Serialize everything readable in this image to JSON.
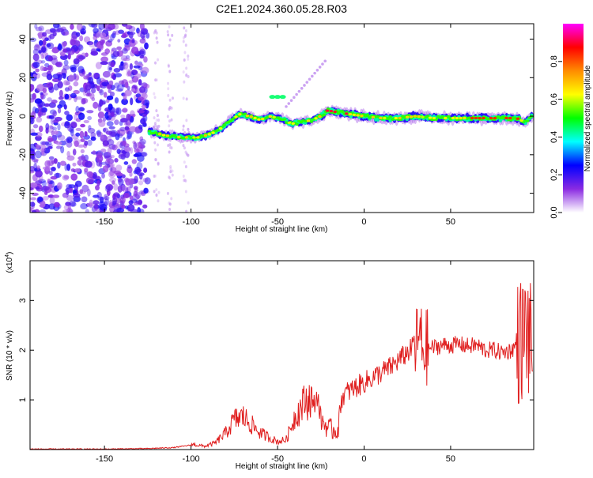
{
  "title": "C2E1.2024.360.05.28.R03",
  "chart_data": [
    {
      "type": "heatmap",
      "xlabel": "Height of straight line (km)",
      "ylabel": "Frequency (Hz)",
      "xlim": [
        -193,
        98
      ],
      "ylim": [
        -50,
        48
      ],
      "x_ticks": [
        -150,
        -100,
        -50,
        0,
        50
      ],
      "y_ticks": [
        -40,
        -20,
        0,
        20,
        40
      ],
      "colorbar": {
        "label": "Normalized spectral amplitude",
        "range": [
          0.0,
          1.0
        ],
        "ticks": [
          0.0,
          0.2,
          0.4,
          0.6,
          0.8
        ],
        "tick_labels": [
          "0.0",
          "0.2",
          "0.4",
          "0.6",
          "0.8"
        ],
        "colormap": [
          "#ffffff",
          "#8a2be2",
          "#0000ff",
          "#00ffff",
          "#00ff00",
          "#ffff00",
          "#ff8c00",
          "#ff0000",
          "#ff00ff"
        ]
      },
      "ridge": {
        "x": [
          -124,
          -115,
          -105,
          -95,
          -88,
          -82,
          -78,
          -72,
          -66,
          -60,
          -55,
          -48,
          -42,
          -36,
          -30,
          -25,
          -21,
          -15,
          -8,
          0,
          10,
          20,
          30,
          40,
          50,
          60,
          70,
          80,
          88,
          93,
          97
        ],
        "y": [
          -8,
          -10,
          -11,
          -11,
          -9,
          -6,
          -3,
          1,
          0,
          -2,
          0,
          -1,
          -4,
          -3,
          -2,
          0,
          3,
          2,
          1,
          0,
          -1,
          -1,
          0,
          -1,
          -1,
          -1,
          -1,
          -1,
          -1,
          -3,
          0
        ]
      }
    },
    {
      "type": "line",
      "xlabel": "Height of straight line (km)",
      "ylabel": "SNR (10 * v/v)",
      "y_multiplier": "(x10",
      "y_multiplier_exp": "4",
      "y_multiplier_close": ")",
      "xlim": [
        -193,
        98
      ],
      "ylim": [
        0,
        3.8
      ],
      "x_ticks": [
        -150,
        -100,
        -50,
        0,
        50
      ],
      "y_ticks": [
        1,
        2,
        3
      ],
      "color": "#e02020",
      "series": [
        {
          "x": [
            -193,
            -150,
            -125,
            -110,
            -100,
            -92,
            -86,
            -80,
            -75,
            -70,
            -66,
            -60,
            -56,
            -50,
            -45,
            -40,
            -35,
            -30,
            -27,
            -25,
            -20,
            -15,
            -13,
            -10,
            -5,
            0,
            5,
            10,
            15,
            20,
            25,
            28,
            30,
            32,
            34,
            36,
            40,
            45,
            50,
            55,
            60,
            65,
            70,
            75,
            80,
            85,
            88,
            90,
            92,
            94,
            96,
            97
          ],
          "y": [
            0.0,
            0.0,
            0.01,
            0.03,
            0.08,
            0.05,
            0.1,
            0.25,
            0.45,
            0.5,
            0.4,
            0.25,
            0.2,
            0.12,
            0.15,
            0.5,
            0.7,
            0.8,
            1.1,
            0.6,
            0.4,
            0.4,
            1.05,
            1.15,
            1.25,
            1.35,
            1.45,
            1.55,
            1.65,
            1.8,
            1.95,
            2.05,
            2.1,
            2.3,
            2.0,
            2.05,
            2.05,
            2.1,
            2.1,
            2.12,
            2.08,
            2.1,
            2.0,
            2.0,
            1.95,
            2.0,
            2.1,
            2.2,
            2.25,
            2.4,
            2.1,
            1.9
          ]
        }
      ]
    }
  ]
}
